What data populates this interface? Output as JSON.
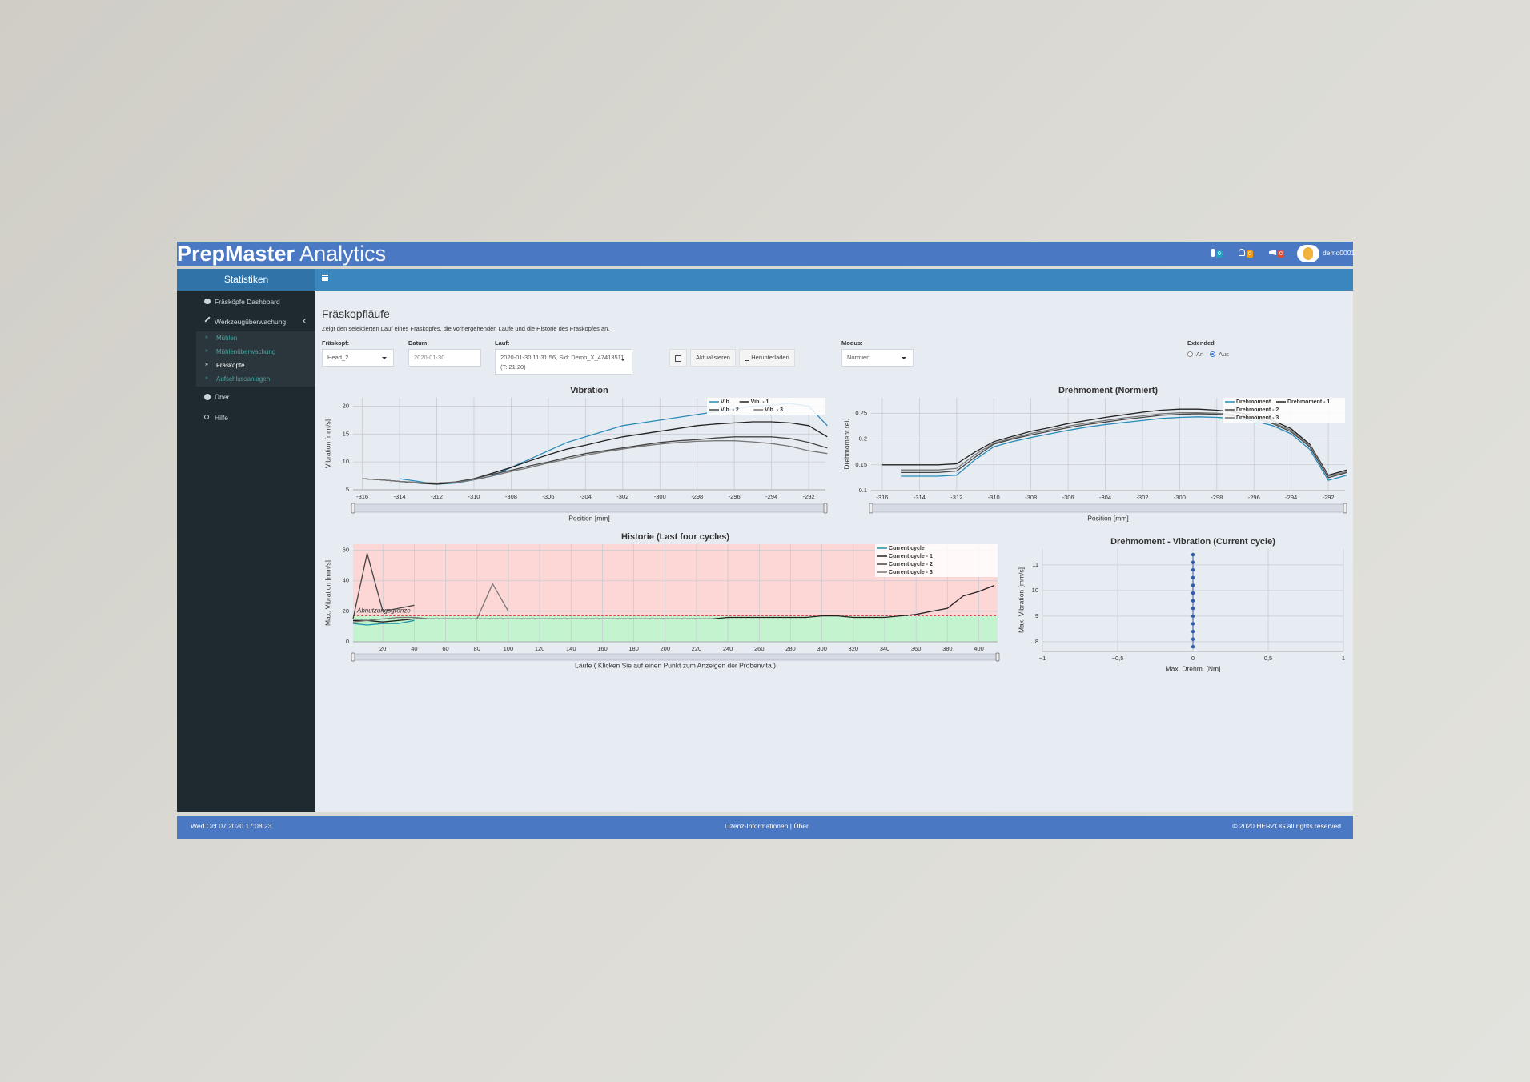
{
  "header": {
    "brand": "PrepMaster",
    "brand_suffix": "Analytics",
    "badges": [
      "0",
      "0",
      "0"
    ],
    "user": "demo0001"
  },
  "sidebar": {
    "title": "Statistiken",
    "items": [
      "Fräsköpfe Dashboard",
      "Werkzeugüberwachung"
    ],
    "subitems": [
      "Mühlen",
      "Mühlenüberwachung",
      "Fräsköpfe",
      "Aufschlussanlagen"
    ],
    "items_after": [
      "Über",
      "Hilfe"
    ]
  },
  "page": {
    "title": "Fräskopfläufe",
    "description": "Zeigt den selektierten Lauf eines Fräskopfes, die vorhergehenden Läufe und die Historie des Fräskopfes an.",
    "filters": {
      "fraeskopf_label": "Fräskopf:",
      "fraeskopf": "Head_2",
      "datum_label": "Datum:",
      "datum": "2020-01-30",
      "lauf_label": "Lauf:",
      "lauf": "2020-01-30 11:31:56, Sid: Demo_X_47413511",
      "lauf_extra": "(T: 21.20)",
      "modus_label": "Modus:",
      "modus": "Normiert",
      "extended_label": "Extended",
      "extended_options": [
        "An",
        "Aus"
      ]
    },
    "buttons": [
      "Aktualisieren",
      "Herunterladen"
    ]
  },
  "chart_data": [
    {
      "type": "line",
      "title": "Vibration",
      "x_label": "Position [mm]",
      "y_label": "Vibration [mm/s]",
      "grid": true,
      "legend": "top-right",
      "range_slider": true,
      "x": [
        -316,
        -315,
        -314,
        -313,
        -312,
        -311,
        -310,
        -309,
        -308,
        -307,
        -306,
        -305,
        -304,
        -303,
        -302,
        -301,
        -300,
        -299,
        -298,
        -297,
        -296,
        -295,
        -294,
        -293,
        -292,
        -291
      ],
      "xlim": [
        -316.5,
        -291.1
      ],
      "xticks": [
        -316,
        -314,
        -312,
        -310,
        -308,
        -306,
        -304,
        -302,
        -300,
        -298,
        -296,
        -294,
        -292
      ],
      "ylim": [
        5,
        21.5
      ],
      "yticks": [
        5,
        10,
        15,
        20
      ],
      "series": [
        {
          "name": "Vib.",
          "color": "#2a8ab8",
          "values": [
            null,
            null,
            7,
            6.5,
            6,
            6.2,
            6.8,
            7.5,
            9,
            10.5,
            12,
            13.5,
            14.5,
            15.5,
            16.5,
            17,
            17.5,
            18,
            18.5,
            19,
            19.5,
            20,
            20.2,
            20.5,
            20,
            16.5
          ]
        },
        {
          "name": "Vib. - 1",
          "color": "#222222",
          "values": [
            7,
            6.8,
            6.5,
            6.2,
            6,
            6.3,
            7,
            8,
            9,
            10.2,
            11.3,
            12.3,
            13,
            13.8,
            14.5,
            15,
            15.5,
            16,
            16.5,
            16.8,
            17,
            17.2,
            17.2,
            17,
            16.5,
            14.5
          ]
        },
        {
          "name": "Vib. - 2",
          "color": "#444444",
          "values": [
            7,
            6.8,
            6.5,
            6.3,
            6.2,
            6.4,
            7,
            7.8,
            8.5,
            9.3,
            10,
            10.8,
            11.5,
            12,
            12.5,
            13,
            13.5,
            13.8,
            14,
            14.3,
            14.5,
            14.5,
            14.5,
            14.2,
            13.5,
            12.5
          ]
        },
        {
          "name": "Vib. - 3",
          "color": "#777777",
          "values": [
            7,
            6.8,
            6.5,
            6.3,
            6.2,
            6.3,
            6.8,
            7.5,
            8.3,
            9,
            9.8,
            10.5,
            11.2,
            11.8,
            12.3,
            12.8,
            13.2,
            13.5,
            13.7,
            13.8,
            13.8,
            13.6,
            13.3,
            12.8,
            12,
            11.5
          ]
        }
      ]
    },
    {
      "type": "line",
      "title": "Drehmoment (Normiert)",
      "x_label": "Position [mm]",
      "y_label": "Drehmoment rel.",
      "grid": true,
      "legend": "top-right",
      "range_slider": true,
      "x": [
        -316,
        -315,
        -314,
        -313,
        -312,
        -311,
        -310,
        -309,
        -308,
        -307,
        -306,
        -305,
        -304,
        -303,
        -302,
        -301,
        -300,
        -299,
        -298,
        -297,
        -296,
        -295,
        -294,
        -293,
        -292,
        -291
      ],
      "xlim": [
        -316.6,
        -291.1
      ],
      "xticks": [
        -316,
        -314,
        -312,
        -310,
        -308,
        -306,
        -304,
        -302,
        -300,
        -298,
        -296,
        -294,
        -292
      ],
      "ylim": [
        0.1,
        0.28
      ],
      "yticks": [
        0.1,
        0.15,
        0.2,
        0.25
      ],
      "series": [
        {
          "name": "Drehmoment",
          "color": "#2a8ab8",
          "values": [
            null,
            0.128,
            0.128,
            0.128,
            0.13,
            0.16,
            0.185,
            0.195,
            0.203,
            0.21,
            0.217,
            0.223,
            0.228,
            0.232,
            0.236,
            0.24,
            0.242,
            0.243,
            0.242,
            0.24,
            0.235,
            0.226,
            0.21,
            0.18,
            0.12,
            0.13
          ]
        },
        {
          "name": "Drehmoment - 1",
          "color": "#222222",
          "values": [
            0.15,
            0.15,
            0.15,
            0.15,
            0.152,
            0.175,
            0.195,
            0.205,
            0.215,
            0.222,
            0.23,
            0.236,
            0.242,
            0.247,
            0.252,
            0.256,
            0.258,
            0.258,
            0.256,
            0.252,
            0.246,
            0.236,
            0.22,
            0.19,
            0.13,
            0.14
          ]
        },
        {
          "name": "Drehmoment - 2",
          "color": "#444444",
          "values": [
            null,
            0.135,
            0.135,
            0.135,
            0.138,
            0.165,
            0.19,
            0.2,
            0.208,
            0.215,
            0.222,
            0.228,
            0.233,
            0.238,
            0.242,
            0.246,
            0.248,
            0.249,
            0.248,
            0.245,
            0.24,
            0.23,
            0.214,
            0.185,
            0.125,
            0.135
          ]
        },
        {
          "name": "Drehmoment - 3",
          "color": "#777777",
          "values": [
            null,
            0.14,
            0.14,
            0.14,
            0.143,
            0.17,
            0.192,
            0.202,
            0.211,
            0.218,
            0.225,
            0.231,
            0.236,
            0.241,
            0.245,
            0.249,
            0.251,
            0.251,
            0.25,
            0.247,
            0.242,
            0.232,
            0.217,
            0.188,
            0.128,
            0.137
          ]
        }
      ]
    },
    {
      "type": "line",
      "title": "Historie (Last four cycles)",
      "x_label": "Läufe ( Klicken Sie auf einen Punkt zum Anzeigen der Probenvita.)",
      "y_label": "Max. Vibration [mm/s]",
      "grid": true,
      "legend": "top-right",
      "range_slider": true,
      "threshold": {
        "label": "Abnutzungsgrenze",
        "value": 17,
        "color": "#d62728"
      },
      "zone_colors": [
        "#fdd6d6",
        "#c4f3cf"
      ],
      "x": [
        1,
        10,
        20,
        30,
        40,
        50,
        60,
        70,
        80,
        90,
        100,
        110,
        120,
        130,
        140,
        150,
        160,
        170,
        180,
        190,
        200,
        210,
        220,
        230,
        240,
        250,
        260,
        270,
        280,
        290,
        300,
        310,
        320,
        330,
        340,
        350,
        360,
        370,
        380,
        390,
        400,
        410
      ],
      "xlim": [
        1,
        412
      ],
      "xticks": [
        20,
        40,
        60,
        80,
        100,
        120,
        140,
        160,
        180,
        200,
        220,
        240,
        260,
        280,
        300,
        320,
        340,
        360,
        380,
        400
      ],
      "ylim": [
        0,
        64
      ],
      "yticks": [
        0,
        20,
        40,
        60
      ],
      "series": [
        {
          "name": "Current cycle",
          "color": "#1f8fa8",
          "values": [
            12,
            11,
            12,
            12,
            14,
            null,
            null,
            null,
            null,
            null,
            null,
            null,
            null,
            null,
            null,
            null,
            null,
            null,
            null,
            null,
            null,
            null,
            null,
            null,
            null,
            null,
            null,
            null,
            null,
            null,
            null,
            null,
            null,
            null,
            null,
            null,
            null,
            null,
            null,
            null,
            null,
            null
          ]
        },
        {
          "name": "Current cycle - 1",
          "color": "#222222",
          "values": [
            14,
            14,
            13,
            14,
            15,
            15,
            15,
            15,
            15,
            15,
            15,
            15,
            15,
            15,
            15,
            15,
            15,
            15,
            15,
            15,
            15,
            15,
            15,
            15,
            16,
            16,
            16,
            16,
            16,
            16,
            17,
            17,
            16,
            16,
            16,
            17,
            18,
            20,
            22,
            30,
            33,
            37
          ]
        },
        {
          "name": "Current cycle - 2",
          "color": "#444444",
          "values": [
            15,
            58,
            20,
            22,
            24,
            null,
            null,
            null,
            null,
            null,
            null,
            null,
            null,
            null,
            null,
            null,
            null,
            null,
            null,
            null,
            null,
            null,
            null,
            null,
            null,
            null,
            null,
            null,
            null,
            null,
            null,
            null,
            null,
            null,
            null,
            null,
            null,
            null,
            null,
            null,
            null,
            null
          ]
        },
        {
          "name": "Current cycle - 3",
          "color": "#777777",
          "values": [
            13,
            14,
            15,
            16,
            16,
            15,
            15,
            15,
            15,
            38,
            20,
            null,
            null,
            null,
            null,
            null,
            null,
            null,
            null,
            null,
            null,
            null,
            null,
            null,
            null,
            null,
            null,
            null,
            null,
            null,
            null,
            null,
            null,
            null,
            null,
            null,
            null,
            null,
            null,
            null,
            null,
            null
          ]
        }
      ]
    },
    {
      "type": "scatter",
      "title": "Drehmoment - Vibration (Current cycle)",
      "x_label": "Max. Drehm. [Nm]",
      "y_label": "Max. Vibration [mm/s]",
      "grid": true,
      "mode": "lines+markers",
      "x": [
        0,
        0,
        0,
        0,
        0,
        0,
        0,
        0,
        0,
        0,
        0,
        0,
        0
      ],
      "xlim": [
        -1,
        1
      ],
      "xticks": [
        {
          "value": -1,
          "label": "−1"
        },
        {
          "value": -0.5,
          "label": "−0,5"
        },
        0,
        {
          "value": 0.5,
          "label": "0,5"
        },
        1
      ],
      "ylim": [
        7.62,
        11.62
      ],
      "yticks": [
        8,
        9,
        10,
        11
      ],
      "series": [
        {
          "color": "#2f5fa8",
          "values": [
            7.8,
            8.1,
            8.4,
            8.7,
            9.0,
            9.3,
            9.6,
            9.9,
            10.2,
            10.5,
            10.8,
            11.1,
            11.4
          ]
        }
      ]
    }
  ],
  "footer": {
    "timestamp": "Wed Oct 07 2020 17:08:23",
    "links": [
      "Lizenz-Informationen",
      "Über"
    ],
    "separator": "|",
    "copyright": "© 2020 HERZOG all rights reserved"
  }
}
